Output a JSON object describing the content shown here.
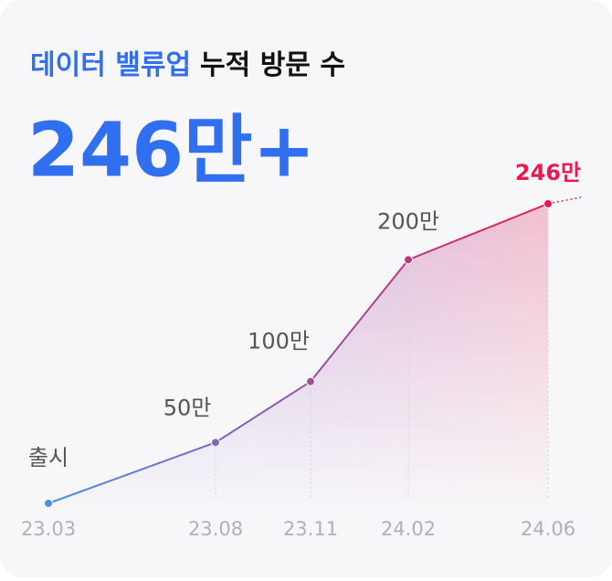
{
  "chart_data": {
    "type": "line",
    "title_highlight": "데이터 밸류업",
    "title": "누적 방문 수",
    "headline": "246만+",
    "categories": [
      "23.03",
      "23.08",
      "23.11",
      "24.02",
      "24.06"
    ],
    "values": [
      0,
      50,
      100,
      200,
      246
    ],
    "value_labels": [
      "출시",
      "50만",
      "100만",
      "200만",
      "246만"
    ],
    "color_start": "#4a90e8",
    "color_end": "#e8194f"
  }
}
